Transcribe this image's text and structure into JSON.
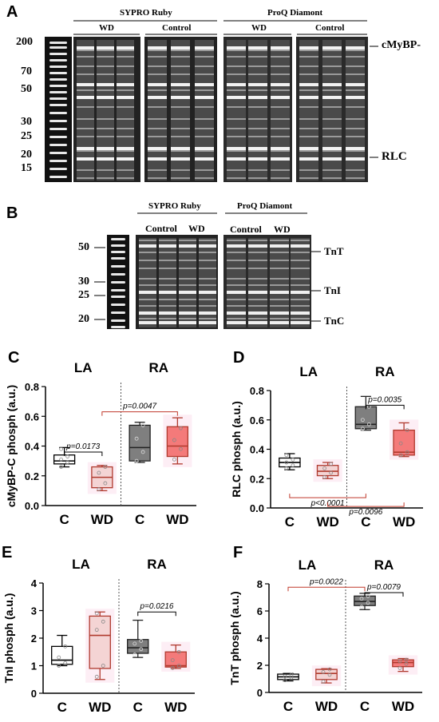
{
  "panel_a": {
    "letter": "A",
    "stain1": "SYPRO Ruby",
    "stain2": "ProQ Diamont",
    "groups": [
      "WD",
      "Control",
      "WD",
      "Control"
    ],
    "markers": [
      "200",
      "70",
      "50",
      "30",
      "25",
      "20",
      "15"
    ],
    "right_labels": [
      "cMyBP-",
      "RLC"
    ]
  },
  "panel_b": {
    "letter": "B",
    "stain1": "SYPRO Ruby",
    "stain2": "ProQ Diamont",
    "groups": [
      "Control",
      "WD",
      "Control",
      "WD"
    ],
    "markers": [
      "50",
      "30",
      "25",
      "20"
    ],
    "right_labels": [
      "TnT",
      "TnI",
      "TnC"
    ]
  },
  "chart_data": [
    {
      "type": "box",
      "panel": "C",
      "ylabel": "cMyBP-C phosph (a.u.)",
      "ylim": [
        0,
        0.8
      ],
      "yticks": [
        "0.0",
        "0.2",
        "0.4",
        "0.6",
        "0.8"
      ],
      "groups": [
        "LA",
        "RA"
      ],
      "categories": [
        "C",
        "WD",
        "C",
        "WD"
      ],
      "boxes": [
        {
          "min": 0.26,
          "q1": 0.28,
          "median": 0.3,
          "q3": 0.34,
          "max": 0.39,
          "points": [
            0.26,
            0.29,
            0.31,
            0.33,
            0.38
          ],
          "color": "#ffffff"
        },
        {
          "min": 0.1,
          "q1": 0.12,
          "median": 0.19,
          "q3": 0.26,
          "max": 0.27,
          "points": [
            0.11,
            0.15,
            0.22,
            0.26
          ],
          "color": "#f4d4d4"
        },
        {
          "min": 0.29,
          "q1": 0.3,
          "median": 0.39,
          "q3": 0.54,
          "max": 0.56,
          "points": [
            0.3,
            0.36,
            0.45,
            0.54
          ],
          "color": "#7f7f7f"
        },
        {
          "min": 0.28,
          "q1": 0.33,
          "median": 0.4,
          "q3": 0.53,
          "max": 0.59,
          "points": [
            0.31,
            0.38,
            0.44,
            0.52
          ],
          "color": "#f47a7a"
        }
      ],
      "annotations": [
        {
          "text": "p=0.0173",
          "from": 0,
          "to": 1,
          "y": 0.36,
          "color": "#000000"
        },
        {
          "text": "p=0.0047",
          "from": 1,
          "to": 3,
          "y": 0.63,
          "color": "#c0392b"
        }
      ]
    },
    {
      "type": "box",
      "panel": "D",
      "ylabel": "RLC phosph (a.u.)",
      "ylim": [
        0,
        0.8
      ],
      "yticks": [
        "0.0",
        "0.2",
        "0.4",
        "0.6",
        "0.8"
      ],
      "groups": [
        "LA",
        "RA"
      ],
      "categories": [
        "C",
        "WD",
        "C",
        "WD"
      ],
      "boxes": [
        {
          "min": 0.26,
          "q1": 0.28,
          "median": 0.31,
          "q3": 0.34,
          "max": 0.37,
          "points": [
            0.27,
            0.29,
            0.31,
            0.33,
            0.36
          ],
          "color": "#ffffff"
        },
        {
          "min": 0.2,
          "q1": 0.22,
          "median": 0.25,
          "q3": 0.29,
          "max": 0.31,
          "points": [
            0.21,
            0.24,
            0.27,
            0.3
          ],
          "color": "#f4d4d4"
        },
        {
          "min": 0.53,
          "q1": 0.54,
          "median": 0.57,
          "q3": 0.69,
          "max": 0.76,
          "points": [
            0.54,
            0.57,
            0.6,
            0.69
          ],
          "color": "#7f7f7f"
        },
        {
          "min": 0.35,
          "q1": 0.36,
          "median": 0.38,
          "q3": 0.53,
          "max": 0.58,
          "points": [
            0.36,
            0.38,
            0.44,
            0.53
          ],
          "color": "#f47a7a"
        }
      ],
      "annotations": [
        {
          "text": "p=0.0035",
          "from": 2,
          "to": 3,
          "y": 0.7,
          "color": "#000000"
        },
        {
          "text": "p<0.0001",
          "from": 0,
          "to": 2,
          "y": 0.07,
          "color": "#c0392b",
          "below": true
        },
        {
          "text": "p=0.0096",
          "from": 1,
          "to": 3,
          "y": 0.01,
          "color": "#c0392b",
          "below": true
        }
      ]
    },
    {
      "type": "box",
      "panel": "E",
      "ylabel": "TnI phosph (a.u.)",
      "ylim": [
        0,
        4
      ],
      "yticks": [
        "0",
        "1",
        "2",
        "3",
        "4"
      ],
      "groups": [
        "LA",
        "RA"
      ],
      "categories": [
        "C",
        "WD",
        "C",
        "WD"
      ],
      "boxes": [
        {
          "min": 1.0,
          "q1": 1.05,
          "median": 1.2,
          "q3": 1.7,
          "max": 2.1,
          "points": [
            1.0,
            1.1,
            1.3,
            1.7
          ],
          "color": "#ffffff"
        },
        {
          "min": 0.5,
          "q1": 0.9,
          "median": 2.1,
          "q3": 2.8,
          "max": 2.95,
          "points": [
            0.6,
            1.0,
            2.3,
            2.6,
            2.9
          ],
          "color": "#f4d4d4"
        },
        {
          "min": 1.3,
          "q1": 1.45,
          "median": 1.65,
          "q3": 1.95,
          "max": 2.65,
          "points": [
            1.4,
            1.6,
            1.8,
            1.9
          ],
          "color": "#7f7f7f"
        },
        {
          "min": 0.9,
          "q1": 0.95,
          "median": 1.0,
          "q3": 1.5,
          "max": 1.75,
          "points": [
            0.92,
            1.0,
            1.2,
            1.5
          ],
          "color": "#f47a7a"
        }
      ],
      "annotations": [
        {
          "text": "p=0.0216",
          "from": 2,
          "to": 3,
          "y": 2.95,
          "color": "#000000"
        }
      ]
    },
    {
      "type": "box",
      "panel": "F",
      "ylabel": "TnT phosph (a.u.)",
      "ylim": [
        0,
        8
      ],
      "yticks": [
        "0",
        "2",
        "4",
        "6",
        "8"
      ],
      "groups": [
        "LA",
        "RA"
      ],
      "categories": [
        "C",
        "WD",
        "C",
        "WD"
      ],
      "boxes": [
        {
          "min": 0.85,
          "q1": 0.95,
          "median": 1.15,
          "q3": 1.35,
          "max": 1.4,
          "points": [
            0.9,
            1.1,
            1.2,
            1.3
          ],
          "color": "#ffffff"
        },
        {
          "min": 0.7,
          "q1": 0.95,
          "median": 1.4,
          "q3": 1.7,
          "max": 1.75,
          "points": [
            0.8,
            1.3,
            1.5,
            1.7
          ],
          "color": "#f4d4d4"
        },
        {
          "min": 6.1,
          "q1": 6.4,
          "median": 6.7,
          "q3": 7.1,
          "max": 7.3,
          "points": [
            6.3,
            6.6,
            6.9,
            7.1
          ],
          "color": "#7f7f7f"
        },
        {
          "min": 1.55,
          "q1": 1.9,
          "median": 2.2,
          "q3": 2.4,
          "max": 2.5,
          "points": [
            1.8,
            2.1,
            2.3,
            2.4
          ],
          "color": "#f47a7a"
        }
      ],
      "annotations": [
        {
          "text": "p=0.0022",
          "from": 0,
          "to": 2,
          "y": 7.75,
          "color": "#c0392b"
        },
        {
          "text": "p=0.0079",
          "from": 2,
          "to": 3,
          "y": 7.35,
          "color": "#000000"
        }
      ]
    }
  ]
}
